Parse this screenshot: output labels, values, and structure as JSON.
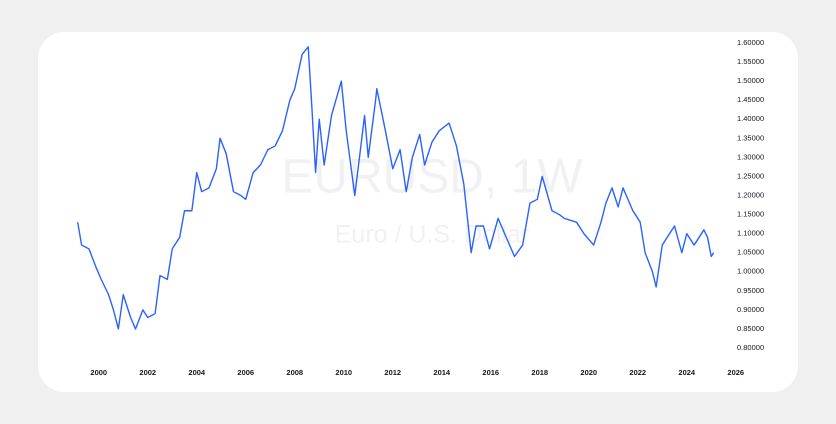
{
  "chart_data": {
    "type": "line",
    "watermark_title": "EURUSD, 1W",
    "watermark_subtitle": "Euro / U.S. Dollar",
    "x": [
      1999.14,
      1999.3,
      1999.6,
      1999.9,
      2000.1,
      2000.4,
      2000.6,
      2000.8,
      2001.0,
      2001.3,
      2001.5,
      2001.8,
      2002.0,
      2002.3,
      2002.5,
      2002.8,
      2003.0,
      2003.3,
      2003.5,
      2003.8,
      2004.0,
      2004.2,
      2004.5,
      2004.8,
      2004.95,
      2005.2,
      2005.5,
      2005.8,
      2006.0,
      2006.3,
      2006.6,
      2006.9,
      2007.2,
      2007.5,
      2007.8,
      2008.0,
      2008.3,
      2008.55,
      2008.7,
      2008.85,
      2009.0,
      2009.2,
      2009.5,
      2009.9,
      2010.1,
      2010.45,
      2010.7,
      2010.85,
      2011.0,
      2011.3,
      2011.35,
      2011.7,
      2012.0,
      2012.3,
      2012.55,
      2012.8,
      2013.1,
      2013.3,
      2013.6,
      2013.9,
      2014.3,
      2014.6,
      2014.9,
      2015.2,
      2015.4,
      2015.7,
      2015.95,
      2016.3,
      2016.5,
      2016.97,
      2017.3,
      2017.6,
      2017.9,
      2018.1,
      2018.5,
      2018.8,
      2019.0,
      2019.5,
      2019.8,
      2020.2,
      2020.5,
      2020.7,
      2020.95,
      2021.2,
      2021.4,
      2021.8,
      2022.1,
      2022.3,
      2022.6,
      2022.75,
      2023.0,
      2023.3,
      2023.5,
      2023.8,
      2024.0,
      2024.3,
      2024.7,
      2024.85,
      2025.0,
      2025.1
    ],
    "series": [
      {
        "color": "#2962ff",
        "values": [
          1.13,
          1.07,
          1.06,
          1.01,
          0.98,
          0.94,
          0.9,
          0.85,
          0.94,
          0.88,
          0.85,
          0.9,
          0.88,
          0.89,
          0.99,
          0.98,
          1.06,
          1.09,
          1.16,
          1.16,
          1.26,
          1.21,
          1.22,
          1.27,
          1.35,
          1.31,
          1.21,
          1.2,
          1.19,
          1.26,
          1.28,
          1.32,
          1.33,
          1.37,
          1.45,
          1.48,
          1.57,
          1.59,
          1.43,
          1.26,
          1.4,
          1.28,
          1.41,
          1.5,
          1.37,
          1.2,
          1.33,
          1.41,
          1.3,
          1.45,
          1.48,
          1.37,
          1.27,
          1.32,
          1.21,
          1.3,
          1.36,
          1.28,
          1.34,
          1.37,
          1.39,
          1.33,
          1.23,
          1.05,
          1.12,
          1.12,
          1.06,
          1.14,
          1.11,
          1.04,
          1.07,
          1.18,
          1.19,
          1.25,
          1.16,
          1.15,
          1.14,
          1.13,
          1.1,
          1.07,
          1.13,
          1.18,
          1.22,
          1.17,
          1.22,
          1.16,
          1.13,
          1.05,
          1.0,
          0.96,
          1.07,
          1.1,
          1.12,
          1.05,
          1.1,
          1.07,
          1.11,
          1.09,
          1.04,
          1.05
        ]
      }
    ],
    "xlim": [
      1998.5,
      2026.5
    ],
    "xticks": [
      2000,
      2002,
      2004,
      2006,
      2008,
      2010,
      2012,
      2014,
      2016,
      2018,
      2020,
      2022,
      2024,
      2026
    ],
    "ylim": [
      0.8,
      1.6
    ],
    "yticks": [
      {
        "value": 0.8,
        "label": "0.80000"
      },
      {
        "value": 0.85,
        "label": "0.85000"
      },
      {
        "value": 0.9,
        "label": "0.90000"
      },
      {
        "value": 0.95,
        "label": "0.95000"
      },
      {
        "value": 1.0,
        "label": "1.00000"
      },
      {
        "value": 1.05,
        "label": "1.05000"
      },
      {
        "value": 1.1,
        "label": "1.10000"
      },
      {
        "value": 1.15,
        "label": "1.15000"
      },
      {
        "value": 1.2,
        "label": "1.20000"
      },
      {
        "value": 1.25,
        "label": "1.25000"
      },
      {
        "value": 1.3,
        "label": "1.30000"
      },
      {
        "value": 1.35,
        "label": "1.35000"
      },
      {
        "value": 1.4,
        "label": "1.40000"
      },
      {
        "value": 1.45,
        "label": "1.45000"
      },
      {
        "value": 1.5,
        "label": "1.50000"
      },
      {
        "value": 1.55,
        "label": "1.55000"
      },
      {
        "value": 1.6,
        "label": "1.60000"
      }
    ],
    "grid": false
  }
}
